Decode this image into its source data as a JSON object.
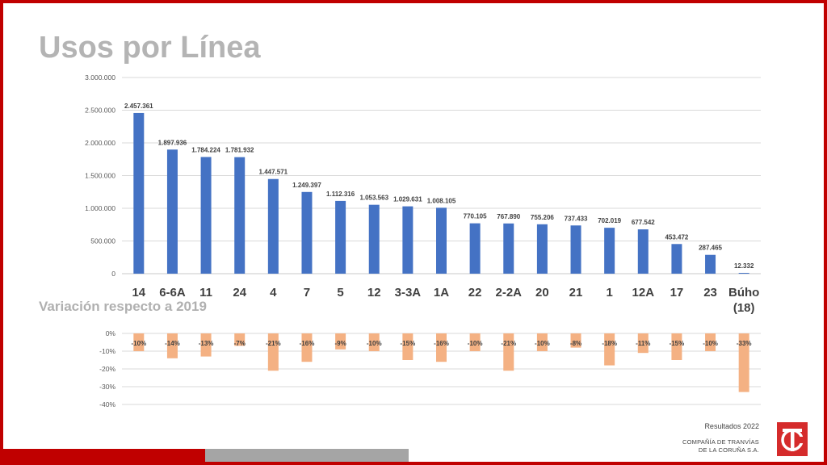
{
  "title": "Usos por Línea",
  "subtitle": "Variación respecto a 2019",
  "footer": {
    "results": "Resultados 2022",
    "company_line1": "COMPAÑÍA DE TRANVÍAS",
    "company_line2": "DE LA CORUÑA S.A."
  },
  "colors": {
    "frame": "#c00000",
    "bar": "#4472c4",
    "variation_bar": "#f4b183",
    "bottom_red": "#c00000",
    "bottom_gray": "#a5a5a5"
  },
  "chart_data": [
    {
      "type": "bar",
      "categories": [
        "14",
        "6-6A",
        "11",
        "24",
        "4",
        "7",
        "5",
        "12",
        "3-3A",
        "1A",
        "22",
        "2-2A",
        "20",
        "21",
        "1",
        "12A",
        "17",
        "23",
        "Búho (18)"
      ],
      "values": [
        2457361,
        1897936,
        1784224,
        1781932,
        1447571,
        1249397,
        1112316,
        1053563,
        1029631,
        1008105,
        770105,
        767890,
        755206,
        737433,
        702019,
        677542,
        453472,
        287465,
        12332
      ],
      "data_labels": [
        "2.457.361",
        "1.897.936",
        "1.784.224",
        "1.781.932",
        "1.447.571",
        "1.249.397",
        "1.112.316",
        "1.053.563",
        "1.029.631",
        "1.008.105",
        "770.105",
        "767.890",
        "755.206",
        "737.433",
        "702.019",
        "677.542",
        "453.472",
        "287.465",
        "12.332"
      ],
      "y_ticks": [
        "0",
        "500.000",
        "1.000.000",
        "1.500.000",
        "2.000.000",
        "2.500.000",
        "3.000.000"
      ],
      "ylim": [
        0,
        3000000
      ],
      "grid": true
    },
    {
      "type": "bar",
      "categories": [
        "14",
        "6-6A",
        "11",
        "24",
        "4",
        "7",
        "5",
        "12",
        "3-3A",
        "1A",
        "22",
        "2-2A",
        "20",
        "21",
        "1",
        "12A",
        "17",
        "23",
        "Búho (18)"
      ],
      "values": [
        -10,
        -14,
        -13,
        -7,
        -21,
        -16,
        -9,
        -10,
        -15,
        -16,
        -10,
        -21,
        -10,
        -8,
        -18,
        -11,
        -15,
        -10,
        -33
      ],
      "data_labels": [
        "-10%",
        "-14%",
        "-13%",
        "-7%",
        "-21%",
        "-16%",
        "-9%",
        "-10%",
        "-15%",
        "-16%",
        "-10%",
        "-21%",
        "-10%",
        "-8%",
        "-18%",
        "-11%",
        "-15%",
        "-10%",
        "-33%"
      ],
      "y_ticks": [
        "0%",
        "-10%",
        "-20%",
        "-30%",
        "-40%"
      ],
      "ylim": [
        -40,
        0
      ],
      "grid": true
    }
  ]
}
